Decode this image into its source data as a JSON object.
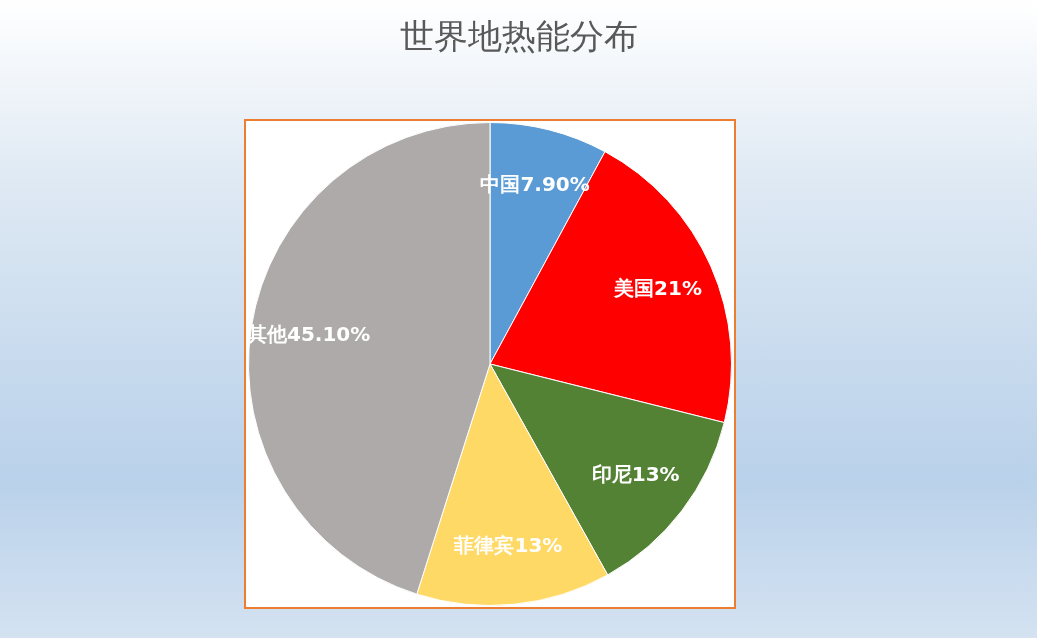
{
  "chart_data": {
    "type": "pie",
    "title": "世界地热能分布",
    "categories": [
      "中国",
      "美国",
      "印尼",
      "菲律宾",
      "其他"
    ],
    "values": [
      7.9,
      21,
      13,
      13,
      45.1
    ],
    "value_labels": [
      "7.90%",
      "21%",
      "13%",
      "13%",
      "45.10%"
    ],
    "colors": [
      "#5b9bd5",
      "#ff0000",
      "#548235",
      "#ffd966",
      "#aeaaaa"
    ]
  }
}
